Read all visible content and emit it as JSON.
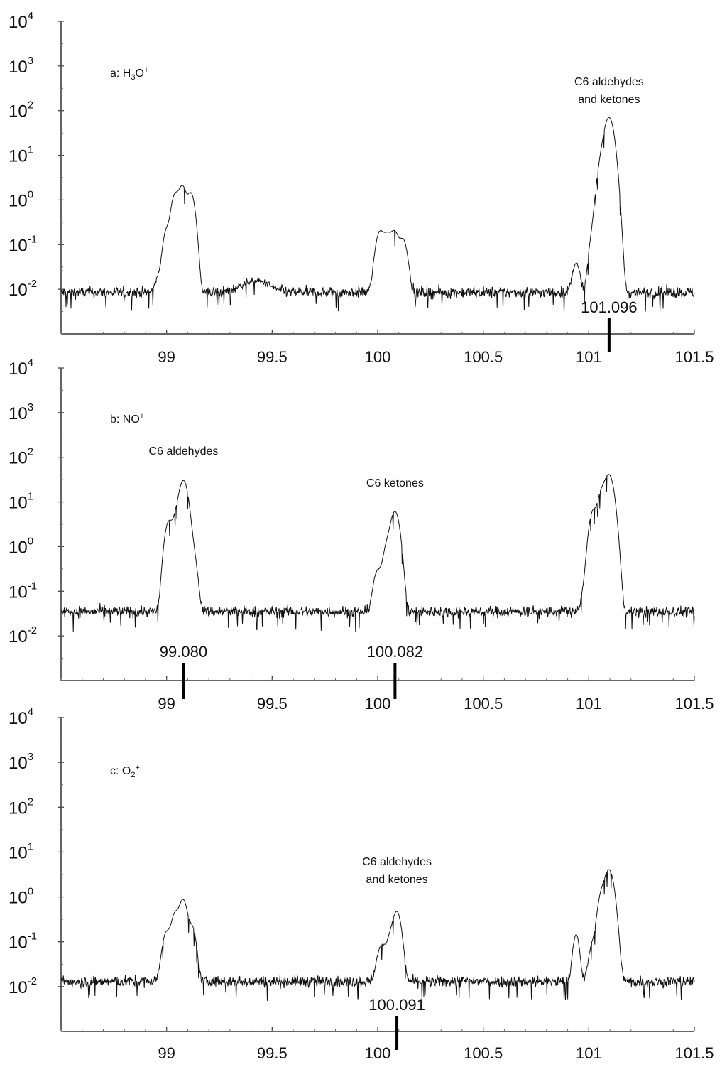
{
  "chart_data": [
    {
      "type": "line",
      "panel_label": "a: H3O+",
      "panel_label_parts": {
        "prefix": "a: H",
        "sub": "3",
        "mid": "O",
        "sup": "+"
      },
      "x_ticks": [
        "99",
        "99.5",
        "100",
        "100.5",
        "101",
        "101.5"
      ],
      "xlim": [
        98.5,
        101.5
      ],
      "y_ticks": [
        {
          "base": "10",
          "exp": "4"
        },
        {
          "base": "10",
          "exp": "3"
        },
        {
          "base": "10",
          "exp": "2"
        },
        {
          "base": "10",
          "exp": "1"
        },
        {
          "base": "10",
          "exp": "0"
        },
        {
          "base": "10",
          "exp": "-1"
        },
        {
          "base": "10",
          "exp": "-2"
        }
      ],
      "y_scale": "log",
      "ylim_log10": [
        -3.0,
        4.0
      ],
      "baseline": 0.0085,
      "peaks": [
        {
          "x": 98.96,
          "height": 0.01,
          "width": 0.012
        },
        {
          "x": 99.0,
          "height": 0.2,
          "width": 0.014
        },
        {
          "x": 99.04,
          "height": 1.3,
          "width": 0.015
        },
        {
          "x": 99.075,
          "height": 2.0,
          "width": 0.015
        },
        {
          "x": 99.115,
          "height": 1.4,
          "width": 0.015
        },
        {
          "x": 99.42,
          "height": 0.007,
          "width": 0.06
        },
        {
          "x": 100.01,
          "height": 0.18,
          "width": 0.016
        },
        {
          "x": 100.045,
          "height": 0.15,
          "width": 0.016
        },
        {
          "x": 100.08,
          "height": 0.18,
          "width": 0.016
        },
        {
          "x": 100.12,
          "height": 0.12,
          "width": 0.016
        },
        {
          "x": 100.94,
          "height": 0.03,
          "width": 0.014
        },
        {
          "x": 101.02,
          "height": 0.15,
          "width": 0.014
        },
        {
          "x": 101.06,
          "height": 6,
          "width": 0.016
        },
        {
          "x": 101.096,
          "height": 70,
          "width": 0.018
        }
      ],
      "annotations": [
        {
          "lines": [
            "C6 aldehydes",
            "and ketones"
          ],
          "x": 101.096
        }
      ],
      "markers": [
        {
          "x": 101.096,
          "label": "101.096"
        }
      ]
    },
    {
      "type": "line",
      "panel_label": "b: NO+",
      "panel_label_parts": {
        "prefix": "b: NO",
        "sub": "",
        "mid": "",
        "sup": "+"
      },
      "x_ticks": [
        "99",
        "99.5",
        "100",
        "100.5",
        "101",
        "101.5"
      ],
      "xlim": [
        98.5,
        101.5
      ],
      "y_ticks": [
        {
          "base": "10",
          "exp": "4"
        },
        {
          "base": "10",
          "exp": "3"
        },
        {
          "base": "10",
          "exp": "2"
        },
        {
          "base": "10",
          "exp": "1"
        },
        {
          "base": "10",
          "exp": "0"
        },
        {
          "base": "10",
          "exp": "-1"
        },
        {
          "base": "10",
          "exp": "-2"
        }
      ],
      "y_scale": "log",
      "ylim_log10": [
        -3.0,
        4.0
      ],
      "baseline": 0.035,
      "peaks": [
        {
          "x": 99.01,
          "height": 3.5,
          "width": 0.015
        },
        {
          "x": 99.045,
          "height": 4.0,
          "width": 0.015
        },
        {
          "x": 99.08,
          "height": 30,
          "width": 0.017
        },
        {
          "x": 99.12,
          "height": 0.8,
          "width": 0.016
        },
        {
          "x": 100.0,
          "height": 0.25,
          "width": 0.016
        },
        {
          "x": 100.045,
          "height": 1.0,
          "width": 0.016
        },
        {
          "x": 100.082,
          "height": 6,
          "width": 0.017
        },
        {
          "x": 100.98,
          "height": 0.07,
          "width": 0.012
        },
        {
          "x": 101.02,
          "height": 6,
          "width": 0.015
        },
        {
          "x": 101.06,
          "height": 15,
          "width": 0.016
        },
        {
          "x": 101.096,
          "height": 40,
          "width": 0.018
        }
      ],
      "annotations": [
        {
          "lines": [
            "C6 aldehydes"
          ],
          "x": 99.08
        },
        {
          "lines": [
            "C6 ketones"
          ],
          "x": 100.082
        }
      ],
      "markers": [
        {
          "x": 99.08,
          "label": "99.080"
        },
        {
          "x": 100.082,
          "label": "100.082"
        }
      ]
    },
    {
      "type": "line",
      "panel_label": "c: O2+",
      "panel_label_parts": {
        "prefix": "c: O",
        "sub": "2",
        "mid": "",
        "sup": "+"
      },
      "x_ticks": [
        "99",
        "99.5",
        "100",
        "100.5",
        "101",
        "101.5"
      ],
      "xlim": [
        98.5,
        101.5
      ],
      "y_ticks": [
        {
          "base": "10",
          "exp": "4"
        },
        {
          "base": "10",
          "exp": "3"
        },
        {
          "base": "10",
          "exp": "2"
        },
        {
          "base": "10",
          "exp": "1"
        },
        {
          "base": "10",
          "exp": "0"
        },
        {
          "base": "10",
          "exp": "-1"
        },
        {
          "base": "10",
          "exp": "-2"
        }
      ],
      "y_scale": "log",
      "ylim_log10": [
        -3.0,
        4.0
      ],
      "baseline": 0.013,
      "peaks": [
        {
          "x": 99.0,
          "height": 0.15,
          "width": 0.016
        },
        {
          "x": 99.04,
          "height": 0.4,
          "width": 0.015
        },
        {
          "x": 99.078,
          "height": 0.85,
          "width": 0.016
        },
        {
          "x": 99.12,
          "height": 0.2,
          "width": 0.015
        },
        {
          "x": 100.02,
          "height": 0.07,
          "width": 0.018
        },
        {
          "x": 100.06,
          "height": 0.1,
          "width": 0.015
        },
        {
          "x": 100.091,
          "height": 0.45,
          "width": 0.016
        },
        {
          "x": 100.94,
          "height": 0.13,
          "width": 0.012
        },
        {
          "x": 101.02,
          "height": 0.08,
          "width": 0.015
        },
        {
          "x": 101.06,
          "height": 1.0,
          "width": 0.015
        },
        {
          "x": 101.096,
          "height": 4.0,
          "width": 0.018
        }
      ],
      "annotations": [
        {
          "lines": [
            "C6 aldehydes",
            "and ketones"
          ],
          "x": 100.091
        }
      ],
      "markers": [
        {
          "x": 100.091,
          "label": "100.091"
        }
      ]
    }
  ]
}
